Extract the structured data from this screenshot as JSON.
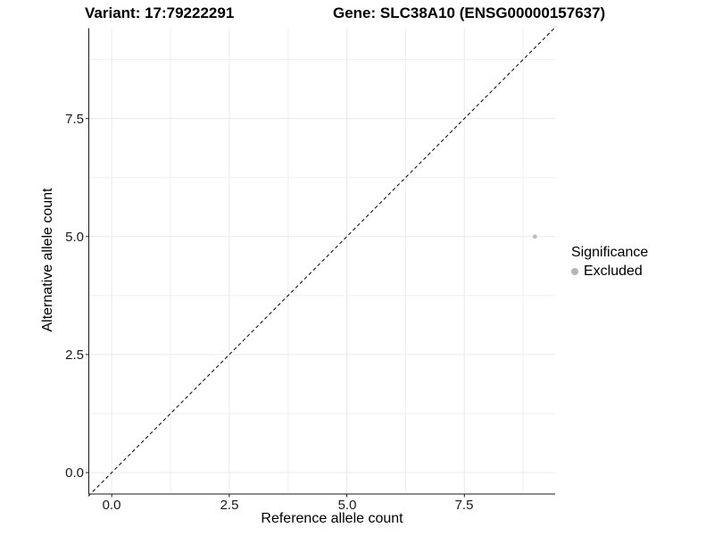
{
  "titles": {
    "variant": "Variant: 17:79222291",
    "gene": "Gene: SLC38A10 (ENSG00000157637)"
  },
  "axes": {
    "x": {
      "label": "Reference allele count",
      "ticks": [
        "0.0",
        "2.5",
        "5.0",
        "7.5"
      ]
    },
    "y": {
      "label": "Alternative allele count",
      "ticks": [
        "0.0",
        "2.5",
        "5.0",
        "7.5"
      ]
    }
  },
  "legend": {
    "title": "Significance",
    "items": [
      {
        "label": "Excluded",
        "color": "#b5b5b5"
      }
    ]
  },
  "colors": {
    "axis": "#1a1a1a",
    "grid_major": "#e9e9e9",
    "grid_minor": "#efefef",
    "reference_line": "#000000",
    "point": "#bcbcbc",
    "background": "#ffffff"
  },
  "chart_data": {
    "type": "scatter",
    "title_left": "Variant: 17:79222291",
    "title_right": "Gene: SLC38A10 (ENSG00000157637)",
    "xlabel": "Reference allele count",
    "ylabel": "Alternative allele count",
    "xlim": [
      -0.5,
      9.45
    ],
    "ylim": [
      -0.5,
      9.45
    ],
    "x_ticks": [
      0.0,
      2.5,
      5.0,
      7.5
    ],
    "y_ticks": [
      0.0,
      2.5,
      5.0,
      7.5
    ],
    "x_tick_labels": [
      "0.0",
      "2.5",
      "5.0",
      "7.5"
    ],
    "y_tick_labels": [
      "0.0",
      "2.5",
      "5.0",
      "7.5"
    ],
    "grid": true,
    "minor_grid": true,
    "legend_position": "right",
    "series": [
      {
        "name": "Excluded",
        "color": "#bcbcbc",
        "points": [
          [
            9,
            5
          ]
        ]
      }
    ],
    "reference_line": {
      "type": "identity",
      "style": "dashed",
      "color": "#000000",
      "from": [
        -0.5,
        -0.5
      ],
      "to": [
        9.45,
        9.45
      ]
    }
  }
}
